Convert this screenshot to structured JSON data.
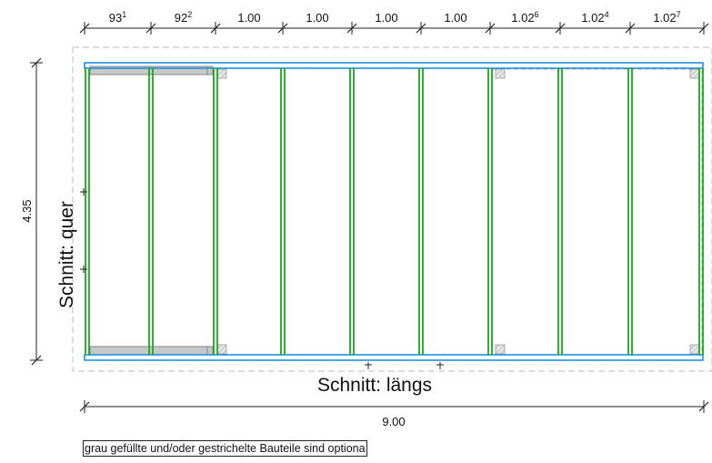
{
  "segment_dimensions": [
    {
      "main": "93",
      "sup": "1"
    },
    {
      "main": "92",
      "sup": "2"
    },
    {
      "main": "1.00",
      "sup": ""
    },
    {
      "main": "1.00",
      "sup": ""
    },
    {
      "main": "1.00",
      "sup": ""
    },
    {
      "main": "1.00",
      "sup": ""
    },
    {
      "main": "1.02",
      "sup": "6"
    },
    {
      "main": "1.02",
      "sup": "4"
    },
    {
      "main": "1.02",
      "sup": "7"
    }
  ],
  "total_width": "9.00",
  "height_dimension": "4.35",
  "section_cross_label": "Schnitt: quer",
  "section_long_label": "Schnitt: längs",
  "note": "grau gefüllte und/oder gestrichelte Bauteile sind optiona",
  "colors": {
    "beam": "#1e8fe0",
    "rafter": "#1aa81a",
    "optional_fill": "#c8c8c8",
    "dashed_outline": "#aaaaaa",
    "dimension_line": "#222222"
  }
}
